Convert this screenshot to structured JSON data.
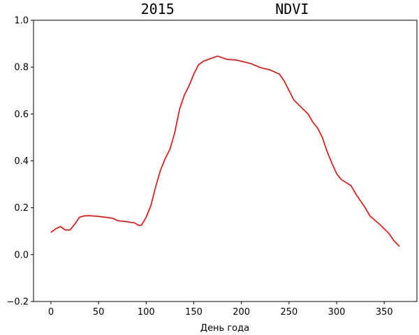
{
  "chart_data": {
    "type": "line",
    "title": "2015            NDVI",
    "x_label": "День года",
    "x": [
      0,
      5,
      10,
      15,
      20,
      25,
      30,
      35,
      40,
      50,
      60,
      65,
      70,
      80,
      88,
      92,
      95,
      100,
      105,
      110,
      115,
      120,
      125,
      130,
      135,
      140,
      145,
      150,
      155,
      160,
      170,
      175,
      180,
      185,
      195,
      205,
      210,
      220,
      230,
      240,
      245,
      250,
      255,
      260,
      270,
      275,
      280,
      285,
      290,
      295,
      300,
      305,
      315,
      320,
      330,
      335,
      345,
      350,
      355,
      360,
      366
    ],
    "series": [
      {
        "name": "NDVI",
        "color": "#ff0000",
        "values": [
          0.095,
          0.11,
          0.12,
          0.105,
          0.105,
          0.13,
          0.16,
          0.165,
          0.166,
          0.163,
          0.158,
          0.155,
          0.145,
          0.14,
          0.135,
          0.125,
          0.125,
          0.16,
          0.21,
          0.29,
          0.36,
          0.41,
          0.45,
          0.52,
          0.62,
          0.68,
          0.72,
          0.77,
          0.81,
          0.825,
          0.84,
          0.847,
          0.84,
          0.833,
          0.83,
          0.82,
          0.815,
          0.798,
          0.788,
          0.77,
          0.74,
          0.7,
          0.66,
          0.64,
          0.6,
          0.565,
          0.54,
          0.5,
          0.44,
          0.39,
          0.345,
          0.32,
          0.295,
          0.26,
          0.2,
          0.165,
          0.13,
          0.11,
          0.09,
          0.06,
          0.035
        ]
      }
    ],
    "xlim": [
      -18.3,
      384.3
    ],
    "xticks": [
      0,
      50,
      100,
      150,
      200,
      250,
      300,
      350
    ],
    "ylim": [
      -0.2,
      1.0
    ],
    "yticks": [
      {
        "value": -0.2,
        "label": "−0.2"
      },
      {
        "value": 0,
        "label": "0.0"
      },
      0.2,
      0.4,
      0.6,
      0.8,
      {
        "value": 1,
        "label": "1.0"
      }
    ]
  }
}
